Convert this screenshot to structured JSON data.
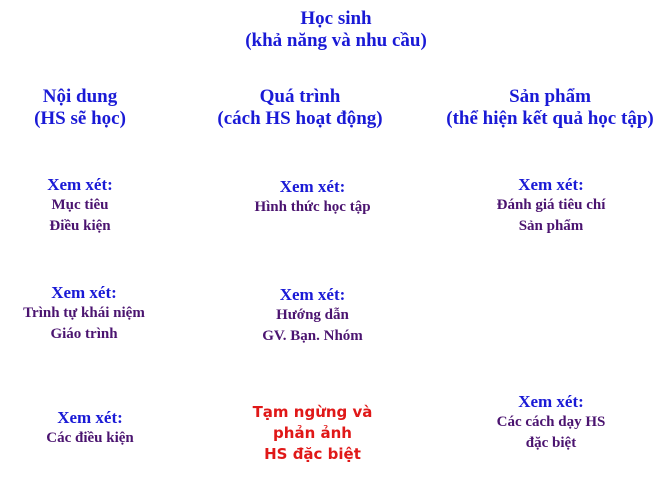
{
  "top": {
    "title": "Học sinh",
    "subtitle": "(khả năng và nhu cầu)"
  },
  "headers": {
    "content": {
      "title": "Nội dung",
      "subtitle": "(HS sẽ học)"
    },
    "process": {
      "title": "Quá trình",
      "subtitle": "(cách HS hoạt động)"
    },
    "product": {
      "title": "Sản phẩm",
      "subtitle": "(thể hiện kết quả học tập)"
    }
  },
  "blocks": {
    "r1c1": {
      "heading": "Xem xét:",
      "lines": [
        "Mục tiêu",
        "Điều kiện"
      ]
    },
    "r1c2": {
      "heading": "Xem xét:",
      "lines": [
        "Hình thức học tập"
      ]
    },
    "r1c3": {
      "heading": "Xem xét:",
      "lines": [
        "Đánh giá tiêu chí",
        "Sản phẩm"
      ]
    },
    "r2c1": {
      "heading": "Xem xét:",
      "lines": [
        "Trình tự khái niệm",
        "Giáo trình"
      ]
    },
    "r2c2": {
      "heading": "Xem xét:",
      "lines": [
        "Hướng dẫn",
        "GV. Bạn. Nhóm"
      ]
    },
    "r3c1": {
      "heading": "Xem xét:",
      "lines": [
        "Các điều kiện"
      ]
    },
    "r3c2": {
      "lines": [
        "Tạm ngừng và",
        "phản ảnh",
        "HS đặc biệt"
      ]
    },
    "r3c3": {
      "heading": "Xem xét:",
      "lines": [
        "Các cách dạy HS",
        "đặc biệt"
      ]
    }
  }
}
